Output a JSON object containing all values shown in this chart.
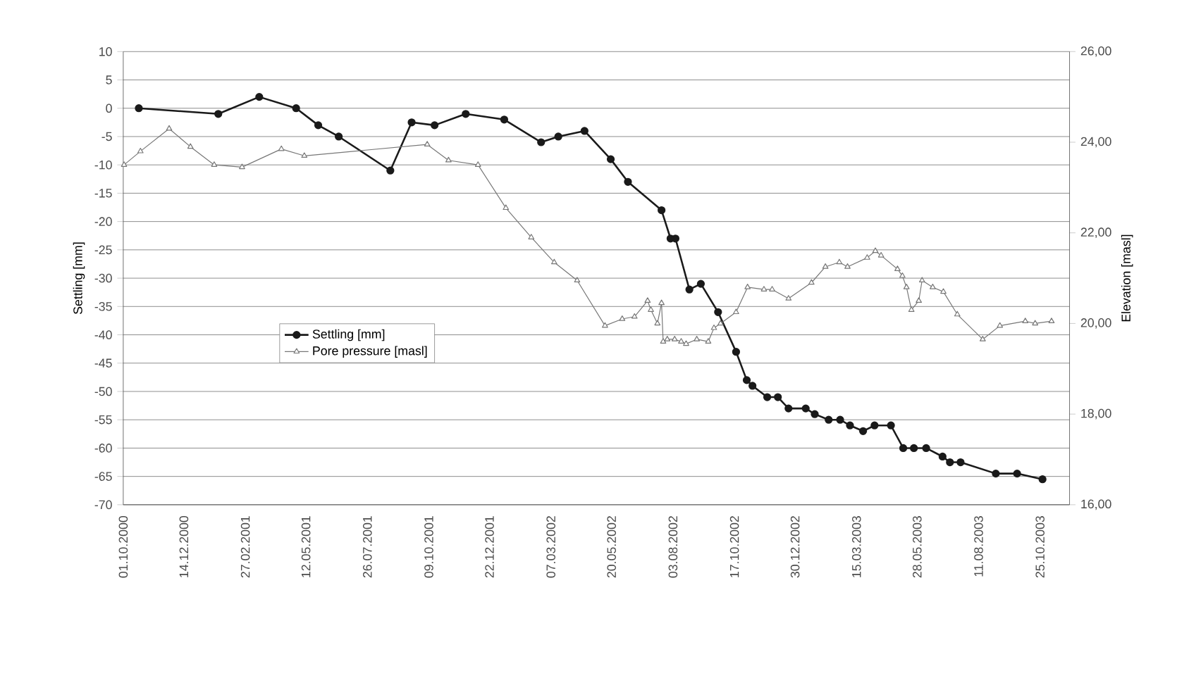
{
  "chart_data": {
    "type": "line",
    "xlabel": null,
    "ylabel": "Settling [mm]",
    "y2label": "Elevation [masl]",
    "xlim": [
      "2000-10-01",
      "2003-11-30"
    ],
    "xticks": [
      {
        "value": "2000-10-01",
        "label": "01.10.2000"
      },
      {
        "value": "2000-12-14",
        "label": "14.12.2000"
      },
      {
        "value": "2001-02-27",
        "label": "27.02.2001"
      },
      {
        "value": "2001-05-12",
        "label": "12.05.2001"
      },
      {
        "value": "2001-07-26",
        "label": "26.07.2001"
      },
      {
        "value": "2001-10-09",
        "label": "09.10.2001"
      },
      {
        "value": "2001-12-22",
        "label": "22.12.2001"
      },
      {
        "value": "2002-03-07",
        "label": "07.03.2002"
      },
      {
        "value": "2002-05-20",
        "label": "20.05.2002"
      },
      {
        "value": "2002-08-03",
        "label": "03.08.2002"
      },
      {
        "value": "2002-10-17",
        "label": "17.10.2002"
      },
      {
        "value": "2002-12-30",
        "label": "30.12.2002"
      },
      {
        "value": "2003-03-15",
        "label": "15.03.2003"
      },
      {
        "value": "2003-05-28",
        "label": "28.05.2003"
      },
      {
        "value": "2003-08-11",
        "label": "11.08.2003"
      },
      {
        "value": "2003-10-25",
        "label": "25.10.2003"
      }
    ],
    "ylim": [
      -70,
      10
    ],
    "yticks": [
      -70,
      -65,
      -60,
      -55,
      -50,
      -45,
      -40,
      -35,
      -30,
      -25,
      -20,
      -15,
      -10,
      -5,
      0,
      5,
      10
    ],
    "y2lim": [
      16,
      26
    ],
    "y2ticks": [
      {
        "value": 16,
        "label": "16,00"
      },
      {
        "value": 18,
        "label": "18,00"
      },
      {
        "value": 20,
        "label": "20,00"
      },
      {
        "value": 22,
        "label": "22,00"
      },
      {
        "value": 24,
        "label": "24,00"
      },
      {
        "value": 26,
        "label": "26,00"
      }
    ],
    "grid": "y",
    "legend": "left",
    "series": [
      {
        "name": "Settling [mm]",
        "color": "#1a1a1a",
        "marker": "circle",
        "axis": "y",
        "x": [
          "2000-10-20",
          "2001-01-25",
          "2001-03-16",
          "2001-04-30",
          "2001-05-27",
          "2001-06-21",
          "2001-08-23",
          "2001-09-18",
          "2001-10-16",
          "2001-11-23",
          "2002-01-09",
          "2002-02-23",
          "2002-03-16",
          "2002-04-17",
          "2002-05-19",
          "2002-06-09",
          "2002-07-20",
          "2002-07-31",
          "2002-08-06",
          "2002-08-23",
          "2002-09-06",
          "2002-09-27",
          "2002-10-19",
          "2002-11-01",
          "2002-11-08",
          "2002-11-26",
          "2002-12-09",
          "2002-12-22",
          "2003-01-12",
          "2003-01-23",
          "2003-02-09",
          "2003-02-23",
          "2003-03-07",
          "2003-03-23",
          "2003-04-06",
          "2003-04-26",
          "2003-05-11",
          "2003-05-24",
          "2003-06-08",
          "2003-06-28",
          "2003-07-07",
          "2003-07-20",
          "2003-09-01",
          "2003-09-27",
          "2003-10-28"
        ],
        "values": [
          0,
          -1,
          2,
          0,
          -3,
          -5,
          -11,
          -2.5,
          -3,
          -1,
          -2,
          -6,
          -5,
          -4,
          -9,
          -13,
          -18,
          -23,
          -23,
          -32,
          -31,
          -36,
          -43,
          -48,
          -49,
          -51,
          -51,
          -53,
          -53,
          -54,
          -55,
          -55,
          -56,
          -57,
          -56,
          -56,
          -60,
          -60,
          -60,
          -61.5,
          -62.5,
          -62.5,
          -64.5,
          -64.5,
          -65.5
        ]
      },
      {
        "name": "Pore pressure [masl]",
        "color": "#777777",
        "marker": "triangle",
        "axis": "y2",
        "x": [
          "2000-10-02",
          "2000-10-22",
          "2000-11-26",
          "2000-12-22",
          "2001-01-20",
          "2001-02-23",
          "2001-04-12",
          "2001-05-10",
          "2001-10-07",
          "2001-11-02",
          "2001-12-08",
          "2002-01-11",
          "2002-02-11",
          "2002-03-11",
          "2002-04-08",
          "2002-05-12",
          "2002-06-02",
          "2002-06-17",
          "2002-07-03",
          "2002-07-07",
          "2002-07-15",
          "2002-07-20",
          "2002-07-22",
          "2002-07-27",
          "2002-08-05",
          "2002-08-13",
          "2002-08-19",
          "2002-09-01",
          "2002-09-15",
          "2002-09-22",
          "2002-09-30",
          "2002-10-19",
          "2002-11-02",
          "2002-11-22",
          "2002-12-02",
          "2002-12-22",
          "2003-01-19",
          "2003-02-05",
          "2003-02-22",
          "2003-03-04",
          "2003-03-28",
          "2003-04-07",
          "2003-04-14",
          "2003-05-04",
          "2003-05-10",
          "2003-05-15",
          "2003-05-21",
          "2003-05-30",
          "2003-06-03",
          "2003-06-16",
          "2003-06-29",
          "2003-07-16",
          "2003-08-16",
          "2003-09-06",
          "2003-10-07",
          "2003-10-19",
          "2003-11-08"
        ],
        "values": [
          23.5,
          23.8,
          24.3,
          23.9,
          23.5,
          23.45,
          23.85,
          23.7,
          23.95,
          23.6,
          23.5,
          22.55,
          21.9,
          21.35,
          20.95,
          19.95,
          20.1,
          20.15,
          20.5,
          20.3,
          20.0,
          20.45,
          19.6,
          19.65,
          19.65,
          19.6,
          19.55,
          19.65,
          19.6,
          19.9,
          20.0,
          20.25,
          20.8,
          20.75,
          20.75,
          20.55,
          20.9,
          21.25,
          21.35,
          21.25,
          21.45,
          21.6,
          21.5,
          21.2,
          21.05,
          20.8,
          20.3,
          20.5,
          20.95,
          20.8,
          20.7,
          20.2,
          19.65,
          19.95,
          20.05,
          20.0,
          20.05
        ]
      }
    ]
  }
}
